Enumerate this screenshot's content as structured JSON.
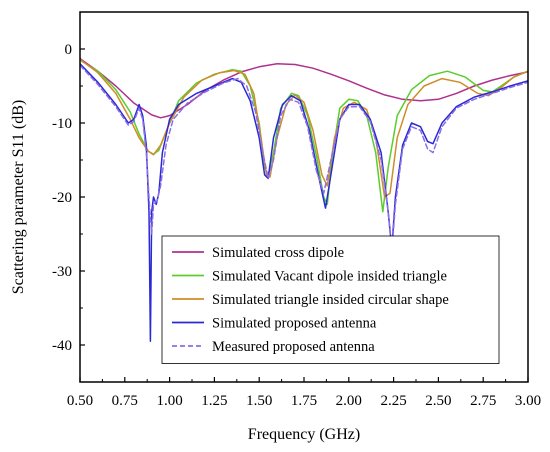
{
  "chart_data": {
    "type": "line",
    "xlabel": "Frequency (GHz)",
    "ylabel": "Scattering parameter S11 (dB)",
    "xlim": [
      0.5,
      3.0
    ],
    "ylim": [
      -45,
      5
    ],
    "xticks": [
      0.5,
      0.75,
      1.0,
      1.25,
      1.5,
      1.75,
      2.0,
      2.25,
      2.5,
      2.75,
      3.0
    ],
    "xtick_labels": [
      "0.50",
      "0.75",
      "1.00",
      "1.25",
      "1.50",
      "1.75",
      "2.00",
      "2.25",
      "2.50",
      "2.75",
      "3.00"
    ],
    "yticks": [
      0,
      -10,
      -20,
      -30,
      -40
    ],
    "ytick_labels": [
      "0",
      "-10",
      "-20",
      "-30",
      "-40"
    ],
    "grid": false,
    "legend_position": "lower-right",
    "series": [
      {
        "name": "Simulated cross dipole",
        "color": "#b0308f",
        "dash": "solid",
        "points": [
          [
            0.5,
            -1.3
          ],
          [
            0.6,
            -3.0
          ],
          [
            0.7,
            -5.0
          ],
          [
            0.8,
            -7.3
          ],
          [
            0.9,
            -8.9
          ],
          [
            0.95,
            -9.3
          ],
          [
            1.0,
            -9.0
          ],
          [
            1.1,
            -7.5
          ],
          [
            1.2,
            -5.6
          ],
          [
            1.3,
            -4.2
          ],
          [
            1.4,
            -3.1
          ],
          [
            1.5,
            -2.4
          ],
          [
            1.6,
            -2.0
          ],
          [
            1.7,
            -2.1
          ],
          [
            1.8,
            -2.6
          ],
          [
            1.9,
            -3.4
          ],
          [
            2.0,
            -4.3
          ],
          [
            2.1,
            -5.3
          ],
          [
            2.2,
            -6.2
          ],
          [
            2.3,
            -6.8
          ],
          [
            2.4,
            -7.0
          ],
          [
            2.5,
            -6.8
          ],
          [
            2.6,
            -6.0
          ],
          [
            2.7,
            -5.0
          ],
          [
            2.8,
            -4.2
          ],
          [
            2.9,
            -3.6
          ],
          [
            3.0,
            -3.1
          ]
        ]
      },
      {
        "name": "Simulated Vacant dipole insided triangle",
        "color": "#5ccc2e",
        "dash": "solid",
        "points": [
          [
            0.5,
            -1.5
          ],
          [
            0.6,
            -3.0
          ],
          [
            0.7,
            -5.5
          ],
          [
            0.78,
            -8.5
          ],
          [
            0.83,
            -11.5
          ],
          [
            0.88,
            -13.8
          ],
          [
            0.91,
            -14.2
          ],
          [
            0.94,
            -13.7
          ],
          [
            0.98,
            -11.2
          ],
          [
            1.05,
            -7.0
          ],
          [
            1.15,
            -4.6
          ],
          [
            1.25,
            -3.4
          ],
          [
            1.35,
            -2.8
          ],
          [
            1.4,
            -3.0
          ],
          [
            1.45,
            -5.0
          ],
          [
            1.5,
            -10.0
          ],
          [
            1.53,
            -16.0
          ],
          [
            1.55,
            -17.0
          ],
          [
            1.58,
            -14.0
          ],
          [
            1.62,
            -8.0
          ],
          [
            1.68,
            -6.0
          ],
          [
            1.72,
            -6.3
          ],
          [
            1.77,
            -9.0
          ],
          [
            1.82,
            -14.5
          ],
          [
            1.86,
            -20.0
          ],
          [
            1.88,
            -21.0
          ],
          [
            1.91,
            -14.0
          ],
          [
            1.95,
            -8.0
          ],
          [
            2.0,
            -6.8
          ],
          [
            2.05,
            -7.0
          ],
          [
            2.1,
            -9.0
          ],
          [
            2.15,
            -14.0
          ],
          [
            2.19,
            -22.0
          ],
          [
            2.22,
            -16.0
          ],
          [
            2.27,
            -9.0
          ],
          [
            2.35,
            -5.5
          ],
          [
            2.45,
            -3.6
          ],
          [
            2.55,
            -3.0
          ],
          [
            2.65,
            -3.8
          ],
          [
            2.75,
            -5.6
          ],
          [
            2.8,
            -5.8
          ],
          [
            2.85,
            -5.0
          ],
          [
            2.92,
            -3.8
          ],
          [
            3.0,
            -3.0
          ]
        ]
      },
      {
        "name": "Simulated triangle insided circular shape",
        "color": "#d08c2a",
        "dash": "solid",
        "points": [
          [
            0.5,
            -1.4
          ],
          [
            0.6,
            -3.2
          ],
          [
            0.7,
            -6.0
          ],
          [
            0.78,
            -9.5
          ],
          [
            0.83,
            -12.0
          ],
          [
            0.88,
            -13.8
          ],
          [
            0.91,
            -14.3
          ],
          [
            0.95,
            -13.0
          ],
          [
            1.0,
            -10.0
          ],
          [
            1.08,
            -6.5
          ],
          [
            1.18,
            -4.2
          ],
          [
            1.28,
            -3.2
          ],
          [
            1.36,
            -2.9
          ],
          [
            1.42,
            -3.4
          ],
          [
            1.47,
            -6.0
          ],
          [
            1.51,
            -12.0
          ],
          [
            1.54,
            -17.0
          ],
          [
            1.56,
            -17.3
          ],
          [
            1.6,
            -12.0
          ],
          [
            1.65,
            -7.5
          ],
          [
            1.7,
            -6.2
          ],
          [
            1.75,
            -7.2
          ],
          [
            1.8,
            -11.0
          ],
          [
            1.85,
            -17.0
          ],
          [
            1.88,
            -18.5
          ],
          [
            1.92,
            -12.0
          ],
          [
            1.97,
            -8.0
          ],
          [
            2.03,
            -7.2
          ],
          [
            2.1,
            -8.2
          ],
          [
            2.15,
            -12.0
          ],
          [
            2.2,
            -20.0
          ],
          [
            2.23,
            -19.5
          ],
          [
            2.27,
            -12.0
          ],
          [
            2.33,
            -7.5
          ],
          [
            2.42,
            -5.0
          ],
          [
            2.52,
            -4.0
          ],
          [
            2.62,
            -4.5
          ],
          [
            2.72,
            -6.0
          ],
          [
            2.78,
            -6.3
          ],
          [
            2.85,
            -5.2
          ],
          [
            2.92,
            -3.8
          ],
          [
            3.0,
            -3.0
          ]
        ]
      },
      {
        "name": "Simulated proposed antenna",
        "color": "#2a2ad4",
        "dash": "solid",
        "points": [
          [
            0.5,
            -2.0
          ],
          [
            0.6,
            -4.5
          ],
          [
            0.7,
            -7.5
          ],
          [
            0.77,
            -10.0
          ],
          [
            0.8,
            -9.5
          ],
          [
            0.83,
            -7.5
          ],
          [
            0.85,
            -9.0
          ],
          [
            0.87,
            -13.0
          ],
          [
            0.885,
            -22.0
          ],
          [
            0.893,
            -39.5
          ],
          [
            0.9,
            -22.0
          ],
          [
            0.91,
            -20.0
          ],
          [
            0.925,
            -21.0
          ],
          [
            0.94,
            -19.5
          ],
          [
            0.96,
            -14.0
          ],
          [
            1.0,
            -9.5
          ],
          [
            1.05,
            -7.5
          ],
          [
            1.15,
            -6.0
          ],
          [
            1.25,
            -5.0
          ],
          [
            1.35,
            -4.0
          ],
          [
            1.4,
            -4.5
          ],
          [
            1.45,
            -7.0
          ],
          [
            1.5,
            -12.0
          ],
          [
            1.53,
            -17.0
          ],
          [
            1.55,
            -17.5
          ],
          [
            1.58,
            -12.0
          ],
          [
            1.63,
            -7.5
          ],
          [
            1.68,
            -6.3
          ],
          [
            1.73,
            -7.0
          ],
          [
            1.78,
            -11.0
          ],
          [
            1.83,
            -17.0
          ],
          [
            1.87,
            -21.5
          ],
          [
            1.9,
            -17.0
          ],
          [
            1.95,
            -9.5
          ],
          [
            2.0,
            -7.5
          ],
          [
            2.06,
            -7.5
          ],
          [
            2.12,
            -9.5
          ],
          [
            2.18,
            -14.0
          ],
          [
            2.22,
            -22.0
          ],
          [
            2.24,
            -27.0
          ],
          [
            2.26,
            -20.0
          ],
          [
            2.3,
            -13.0
          ],
          [
            2.35,
            -10.0
          ],
          [
            2.4,
            -10.5
          ],
          [
            2.44,
            -12.5
          ],
          [
            2.47,
            -12.8
          ],
          [
            2.52,
            -10.0
          ],
          [
            2.6,
            -7.8
          ],
          [
            2.7,
            -6.5
          ],
          [
            2.8,
            -5.8
          ],
          [
            2.9,
            -5.0
          ],
          [
            3.0,
            -4.3
          ]
        ]
      },
      {
        "name": "Measured proposed antenna",
        "color": "#8b6ee8",
        "dash": "dashed",
        "points": [
          [
            0.5,
            -2.2
          ],
          [
            0.6,
            -4.8
          ],
          [
            0.7,
            -7.8
          ],
          [
            0.77,
            -10.3
          ],
          [
            0.8,
            -9.8
          ],
          [
            0.83,
            -8.0
          ],
          [
            0.85,
            -9.5
          ],
          [
            0.87,
            -14.0
          ],
          [
            0.89,
            -22.0
          ],
          [
            0.9,
            -25.0
          ],
          [
            0.91,
            -21.0
          ],
          [
            0.93,
            -20.5
          ],
          [
            0.95,
            -18.5
          ],
          [
            0.98,
            -13.0
          ],
          [
            1.02,
            -9.5
          ],
          [
            1.1,
            -7.3
          ],
          [
            1.2,
            -5.8
          ],
          [
            1.3,
            -4.6
          ],
          [
            1.38,
            -4.0
          ],
          [
            1.43,
            -5.0
          ],
          [
            1.48,
            -8.5
          ],
          [
            1.52,
            -14.0
          ],
          [
            1.55,
            -17.5
          ],
          [
            1.58,
            -15.0
          ],
          [
            1.62,
            -9.0
          ],
          [
            1.67,
            -6.8
          ],
          [
            1.72,
            -7.2
          ],
          [
            1.77,
            -10.5
          ],
          [
            1.82,
            -16.5
          ],
          [
            1.86,
            -19.5
          ],
          [
            1.9,
            -15.0
          ],
          [
            1.95,
            -9.5
          ],
          [
            2.0,
            -7.8
          ],
          [
            2.06,
            -7.8
          ],
          [
            2.12,
            -9.8
          ],
          [
            2.18,
            -15.0
          ],
          [
            2.22,
            -22.0
          ],
          [
            2.24,
            -27.5
          ],
          [
            2.26,
            -21.0
          ],
          [
            2.3,
            -13.5
          ],
          [
            2.35,
            -10.5
          ],
          [
            2.4,
            -11.0
          ],
          [
            2.44,
            -13.5
          ],
          [
            2.47,
            -14.0
          ],
          [
            2.52,
            -10.5
          ],
          [
            2.6,
            -8.0
          ],
          [
            2.7,
            -6.8
          ],
          [
            2.8,
            -6.0
          ],
          [
            2.9,
            -5.2
          ],
          [
            3.0,
            -4.5
          ]
        ]
      }
    ]
  }
}
